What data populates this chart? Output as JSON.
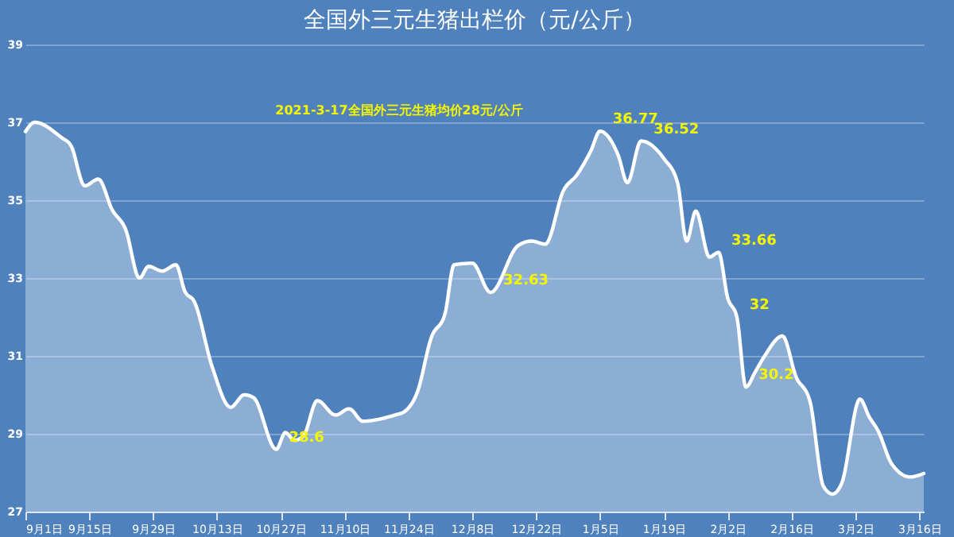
{
  "chart_data": {
    "type": "area",
    "title": "全国外三元生猪出栏价（元/公斤）",
    "x": [
      "2020-09-01",
      "2020-09-03",
      "2020-09-09",
      "2020-09-11",
      "2020-09-14",
      "2020-09-17",
      "2020-09-20",
      "2020-09-23",
      "2020-09-26",
      "2020-09-28",
      "2020-10-01",
      "2020-10-04",
      "2020-10-06",
      "2020-10-08",
      "2020-10-12",
      "2020-10-16",
      "2020-10-19",
      "2020-10-21",
      "2020-10-26",
      "2020-10-28",
      "2020-10-30",
      "2020-11-01",
      "2020-11-04",
      "2020-11-08",
      "2020-11-11",
      "2020-11-14",
      "2020-11-17",
      "2020-11-21",
      "2020-11-23",
      "2020-11-26",
      "2020-11-29",
      "2020-12-02",
      "2020-12-04",
      "2020-12-08",
      "2020-12-12",
      "2020-12-18",
      "2020-12-21",
      "2020-12-24",
      "2020-12-28",
      "2020-12-31",
      "2021-01-03",
      "2021-01-05",
      "2021-01-09",
      "2021-01-11",
      "2021-01-14",
      "2021-01-19",
      "2021-01-22",
      "2021-01-24",
      "2021-01-26",
      "2021-01-29",
      "2021-01-31",
      "2021-02-02",
      "2021-02-04",
      "2021-02-06",
      "2021-02-08",
      "2021-02-10",
      "2021-02-14",
      "2021-02-17",
      "2021-02-20",
      "2021-02-23",
      "2021-02-25",
      "2021-02-27",
      "2021-03-03",
      "2021-03-05",
      "2021-03-07",
      "2021-03-10",
      "2021-03-14",
      "2021-03-17"
    ],
    "series": [
      {
        "color": "#ffffff",
        "values": [
          36.76,
          37.0,
          36.6,
          36.4,
          35.37,
          35.54,
          34.76,
          34.24,
          33.0,
          33.3,
          33.18,
          33.34,
          32.65,
          32.4,
          30.7,
          29.68,
          30.0,
          29.93,
          28.6,
          29.03,
          28.83,
          28.95,
          29.85,
          29.48,
          29.64,
          29.32,
          29.36,
          29.48,
          29.56,
          30.09,
          31.47,
          32.08,
          33.34,
          33.38,
          32.63,
          33.83,
          33.95,
          33.87,
          35.25,
          35.66,
          36.27,
          36.77,
          36.15,
          35.45,
          36.52,
          36.07,
          35.45,
          33.95,
          34.72,
          33.54,
          33.66,
          32.49,
          32.0,
          30.2,
          30.58,
          30.98,
          31.51,
          30.46,
          29.85,
          27.65,
          27.45,
          27.73,
          29.89,
          29.44,
          29.07,
          28.22,
          27.89,
          27.98
        ]
      }
    ],
    "xlim": [
      "2020-09-01",
      "2021-03-17"
    ],
    "xticks": [
      {
        "value": "2020-09-01",
        "label": "9月1日"
      },
      {
        "value": "2020-09-15",
        "label": "9月15日"
      },
      {
        "value": "2020-09-29",
        "label": "9月29日"
      },
      {
        "value": "2020-10-13",
        "label": "10月13日"
      },
      {
        "value": "2020-10-27",
        "label": "10月27日"
      },
      {
        "value": "2020-11-10",
        "label": "11月10日"
      },
      {
        "value": "2020-11-24",
        "label": "11月24日"
      },
      {
        "value": "2020-12-08",
        "label": "12月8日"
      },
      {
        "value": "2020-12-22",
        "label": "12月22日"
      },
      {
        "value": "2021-01-05",
        "label": "1月5日"
      },
      {
        "value": "2021-01-19",
        "label": "1月19日"
      },
      {
        "value": "2021-02-02",
        "label": "2月2日"
      },
      {
        "value": "2021-02-16",
        "label": "2月16日"
      },
      {
        "value": "2021-03-02",
        "label": "3月2日"
      },
      {
        "value": "2021-03-16",
        "label": "3月16日"
      }
    ],
    "ylim": [
      27,
      39
    ],
    "yticks": [
      27,
      29,
      31,
      33,
      35,
      37,
      39
    ],
    "grid": "y",
    "annotations": [
      "2021-3-17全国外三元生猪均价28元/公斤",
      {
        "text": "28.6",
        "x": "2020-10-26",
        "y": 28.6
      },
      {
        "text": "32.63",
        "x": "2020-12-12",
        "y": 32.63
      },
      {
        "text": "36.77",
        "x": "2021-01-05",
        "y": 36.77
      },
      {
        "text": "36.52",
        "x": "2021-01-14",
        "y": 36.52
      },
      {
        "text": "33.66",
        "x": "2021-01-31",
        "y": 33.66
      },
      {
        "text": "32",
        "x": "2021-02-04",
        "y": 32.0
      },
      {
        "text": "30.2",
        "x": "2021-02-06",
        "y": 30.2
      }
    ]
  }
}
